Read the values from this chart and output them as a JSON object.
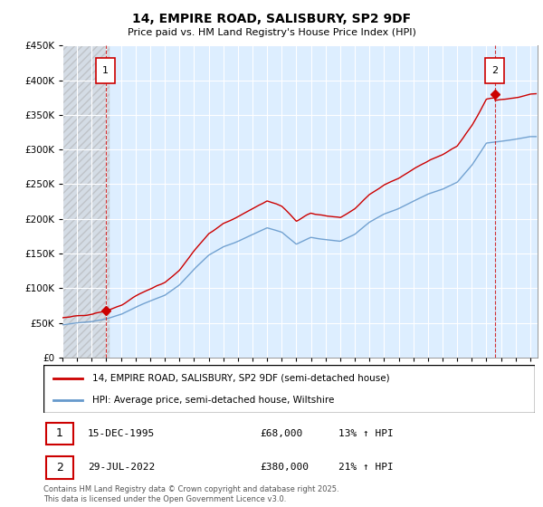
{
  "title": "14, EMPIRE ROAD, SALISBURY, SP2 9DF",
  "subtitle": "Price paid vs. HM Land Registry's House Price Index (HPI)",
  "ylim": [
    0,
    450000
  ],
  "yticks": [
    0,
    50000,
    100000,
    150000,
    200000,
    250000,
    300000,
    350000,
    400000,
    450000
  ],
  "hpi_color": "#6699cc",
  "price_color": "#cc0000",
  "bg_color": "#ddeeff",
  "hatch_color": "#bbbbbb",
  "sale1_x": 1995.958,
  "sale1_y": 68000,
  "sale2_x": 2022.581,
  "sale2_y": 380000,
  "legend1": "14, EMPIRE ROAD, SALISBURY, SP2 9DF (semi-detached house)",
  "legend2": "HPI: Average price, semi-detached house, Wiltshire",
  "footnote": "Contains HM Land Registry data © Crown copyright and database right 2025.\nThis data is licensed under the Open Government Licence v3.0.",
  "table1_label": "1",
  "table1_date": "15-DEC-1995",
  "table1_price": "£68,000",
  "table1_hpi": "13% ↑ HPI",
  "table2_label": "2",
  "table2_date": "29-JUL-2022",
  "table2_price": "£380,000",
  "table2_hpi": "21% ↑ HPI",
  "xmin": 1993,
  "xmax": 2025.5
}
